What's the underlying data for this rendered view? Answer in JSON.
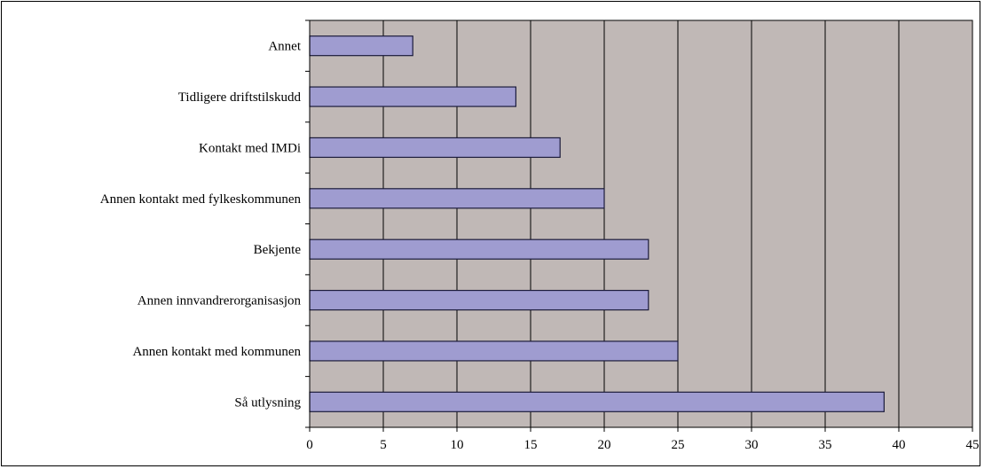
{
  "chart_data": {
    "type": "bar",
    "orientation": "horizontal",
    "categories": [
      "Annet",
      "Tidligere driftstilskudd",
      "Kontakt med IMDi",
      "Annen kontakt med  fylkeskommunen",
      "Bekjente",
      "Annen innvandrerorganisasjon",
      "Annen kontakt med kommunen",
      "Så utlysning"
    ],
    "values": [
      7,
      14,
      17,
      20,
      23,
      23,
      25,
      39
    ],
    "xlim": [
      0,
      45
    ],
    "xticks": [
      "0",
      "5",
      "10",
      "15",
      "20",
      "25",
      "30",
      "35",
      "40",
      "45"
    ],
    "grid": true,
    "legend": "none",
    "colors": {
      "plot_background": "#c0b8b6",
      "bar_fill": "#9f9cd0",
      "bar_stroke": "#1c1c3c",
      "gridline": "#000000"
    }
  }
}
